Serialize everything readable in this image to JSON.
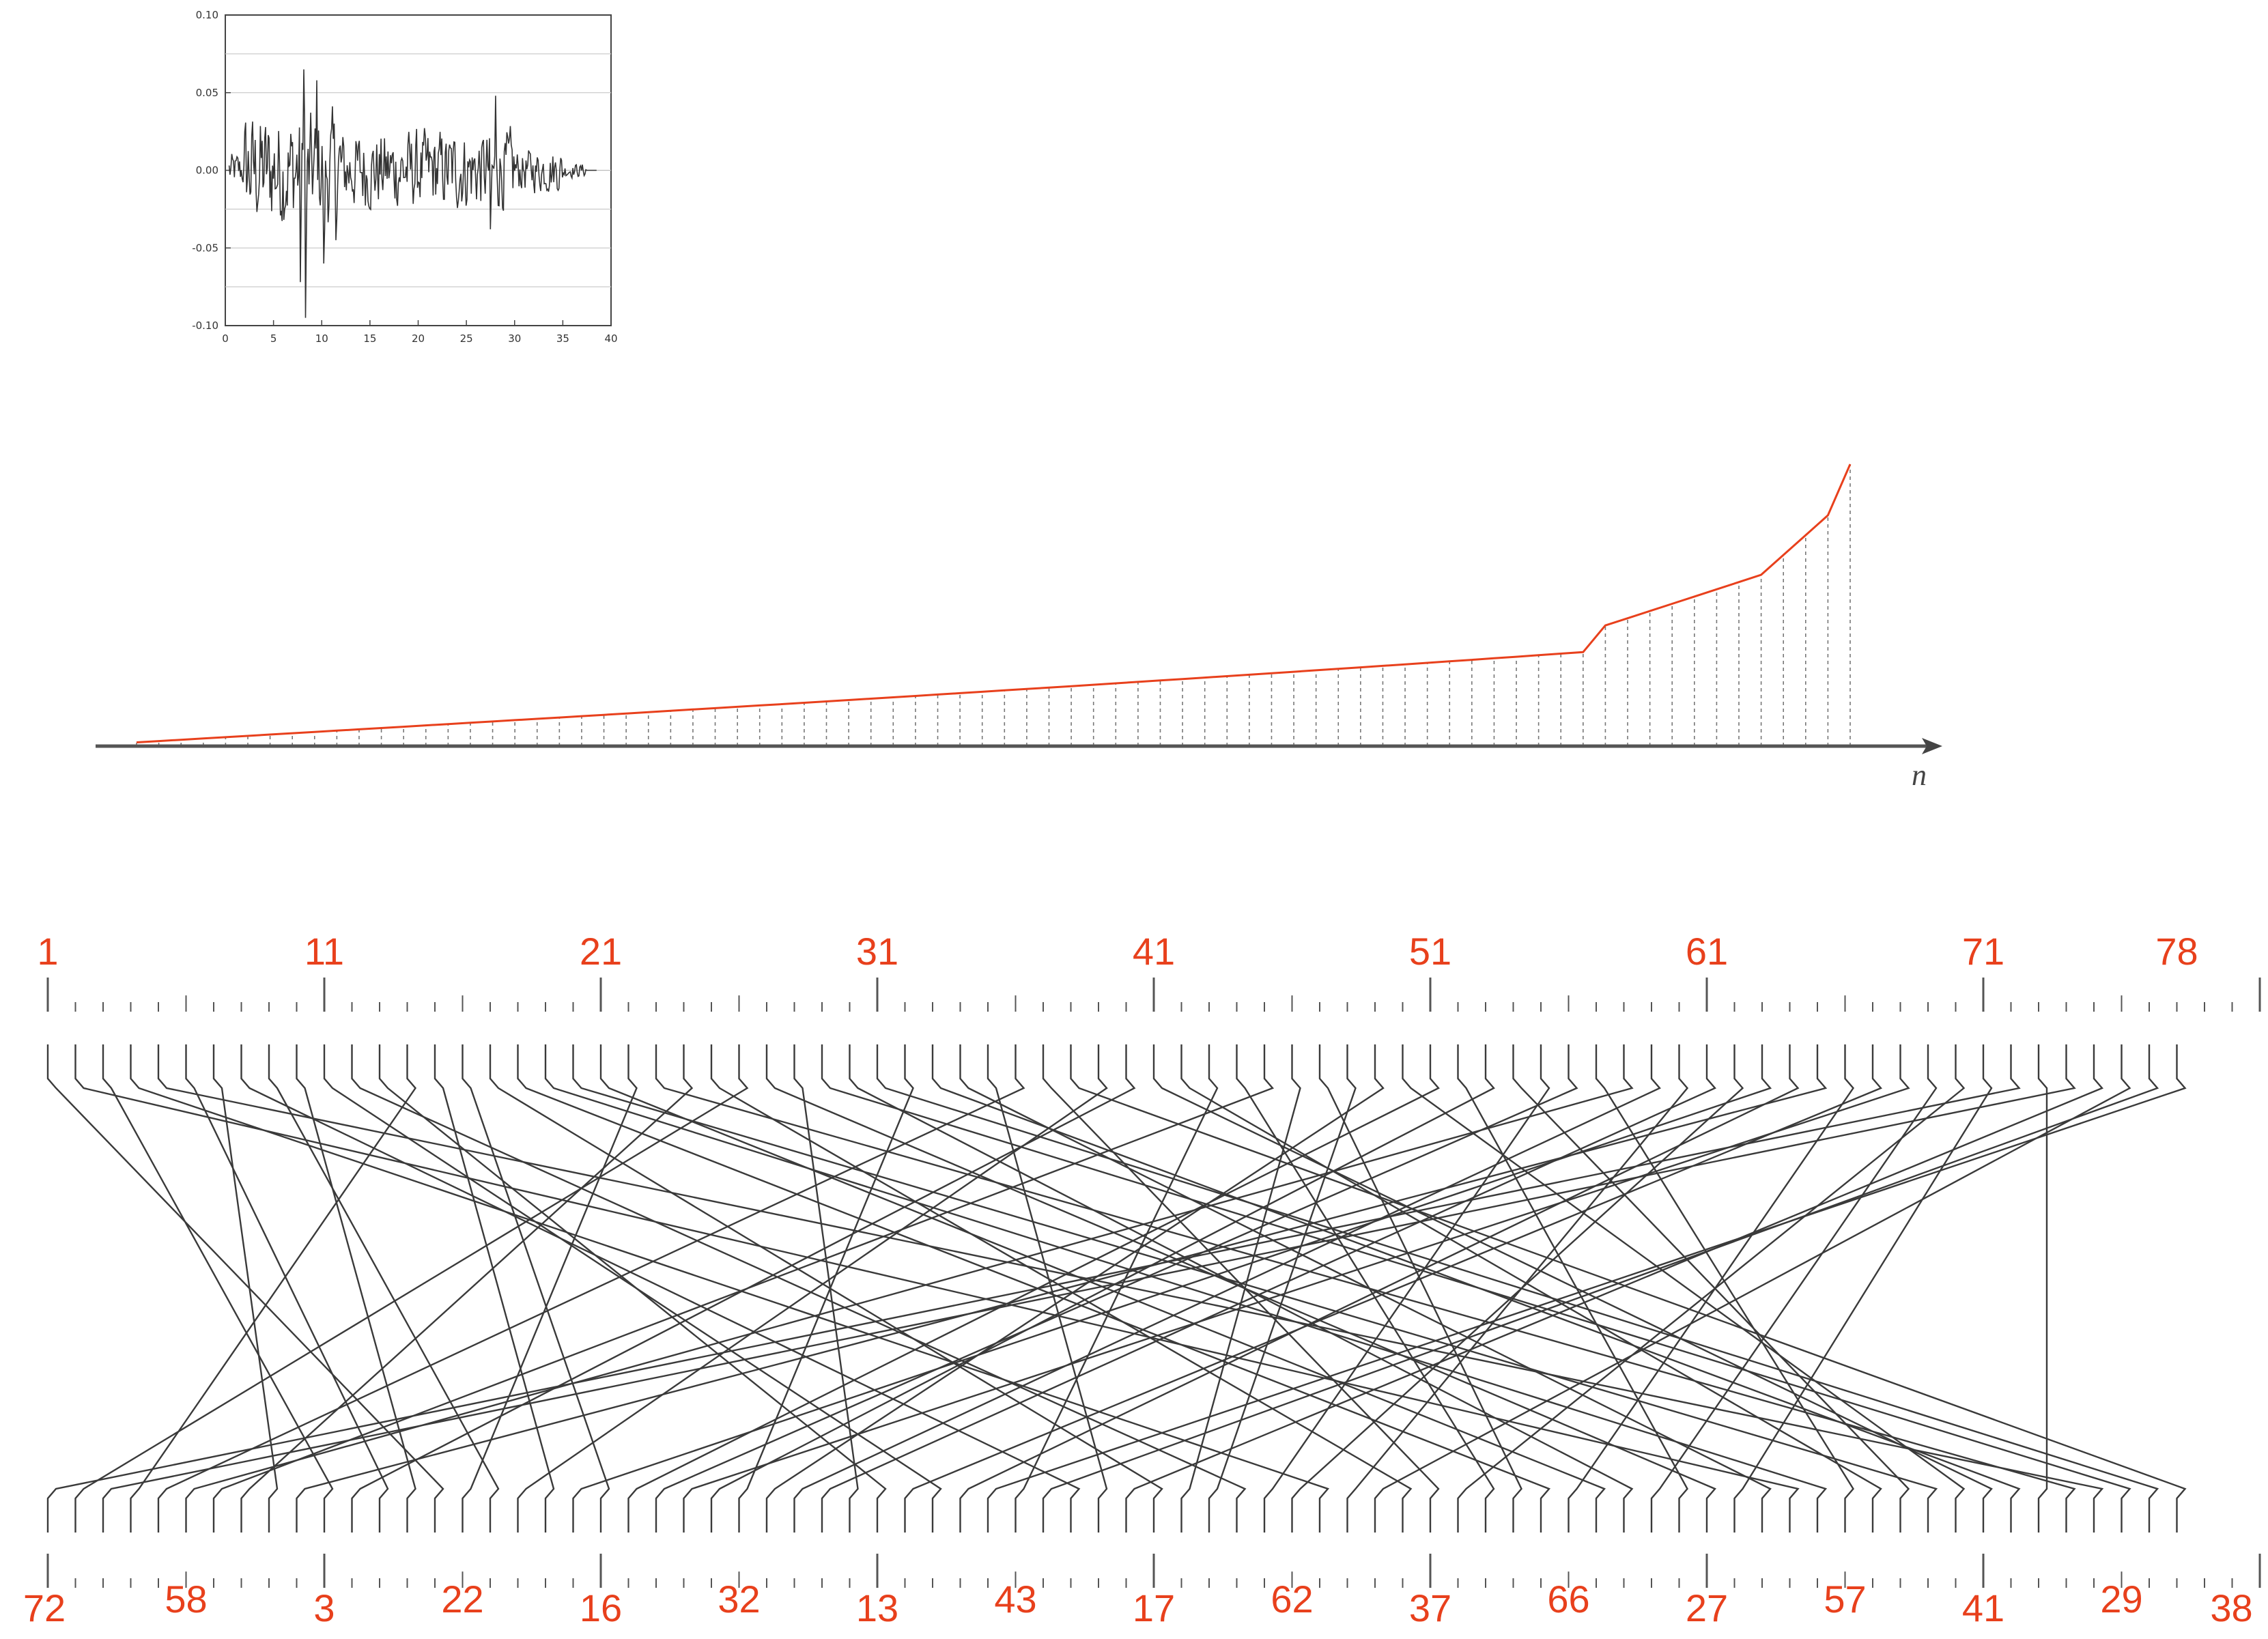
{
  "colors": {
    "accent": "#e8401c",
    "line": "#333333",
    "grid": "#cccccc",
    "axis": "#555555"
  },
  "signal_chart": {
    "type": "line",
    "x_ticks": [
      "0",
      "5",
      "10",
      "15",
      "20",
      "25",
      "30",
      "35",
      "40"
    ],
    "y_ticks": [
      "0.10",
      "0.05",
      "0.00",
      "-0.05",
      "-0.10"
    ],
    "xlim": [
      0,
      40
    ],
    "ylim": [
      -0.1,
      0.1
    ],
    "grid": true
  },
  "sorted_chart": {
    "axis_label": "n",
    "count": 78
  },
  "permutation": {
    "top_labels": [
      "1",
      "11",
      "21",
      "31",
      "41",
      "51",
      "61",
      "71",
      "78"
    ],
    "top_label_slots": [
      1,
      11,
      21,
      31,
      41,
      51,
      61,
      71,
      78
    ],
    "bottom_labels": [
      "72",
      "58",
      "3",
      "22",
      "16",
      "32",
      "13",
      "43",
      "17",
      "62",
      "37",
      "66",
      "27",
      "57",
      "41",
      "29",
      "38"
    ],
    "bottom_label_slots": [
      1,
      6,
      11,
      16,
      21,
      26,
      31,
      36,
      41,
      46,
      51,
      56,
      61,
      66,
      71,
      76,
      78
    ]
  }
}
